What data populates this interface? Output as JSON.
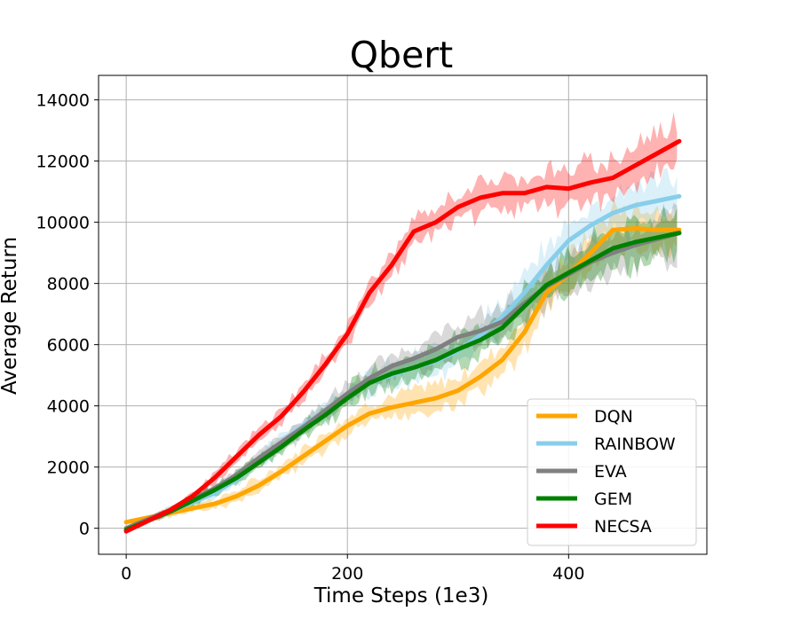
{
  "chart_data": {
    "type": "line",
    "title": "Qbert",
    "xlabel": "Time Steps (1e3)",
    "ylabel": "Average Return",
    "xlim": [
      -25,
      525
    ],
    "ylim": [
      -850,
      14800
    ],
    "xticks": [
      0,
      200,
      400
    ],
    "yticks": [
      0,
      2000,
      4000,
      6000,
      8000,
      10000,
      12000,
      14000
    ],
    "grid": true,
    "legend_position": "lower-right",
    "series": [
      {
        "name": "DQN",
        "color": "#FFA500",
        "x": [
          0,
          20,
          40,
          60,
          80,
          100,
          120,
          140,
          160,
          180,
          200,
          220,
          240,
          260,
          280,
          300,
          320,
          340,
          360,
          380,
          400,
          420,
          440,
          460,
          480,
          500
        ],
        "values": [
          200,
          350,
          500,
          650,
          800,
          1050,
          1400,
          1850,
          2350,
          2850,
          3350,
          3750,
          3950,
          4100,
          4250,
          4500,
          4950,
          5500,
          6400,
          7700,
          8300,
          9000,
          9750,
          9800,
          9750,
          9750
        ]
      },
      {
        "name": "RAINBOW",
        "color": "#87CEEB",
        "x": [
          0,
          20,
          40,
          60,
          80,
          100,
          120,
          140,
          160,
          180,
          200,
          220,
          240,
          260,
          280,
          300,
          320,
          340,
          360,
          380,
          400,
          420,
          440,
          460,
          480,
          500
        ],
        "values": [
          -100,
          250,
          550,
          850,
          1150,
          1600,
          2200,
          2800,
          3350,
          3850,
          4350,
          4750,
          5000,
          5250,
          5450,
          5800,
          6300,
          6900,
          7700,
          8600,
          9400,
          9900,
          10300,
          10550,
          10700,
          10850
        ]
      },
      {
        "name": "EVA",
        "color": "#808080",
        "x": [
          0,
          20,
          40,
          60,
          80,
          100,
          120,
          140,
          160,
          180,
          200,
          220,
          240,
          260,
          280,
          300,
          320,
          340,
          360,
          380,
          400,
          420,
          440,
          460,
          480,
          500
        ],
        "values": [
          0,
          300,
          600,
          950,
          1300,
          1750,
          2300,
          2800,
          3300,
          3850,
          4400,
          4900,
          5300,
          5550,
          5850,
          6250,
          6450,
          6750,
          7350,
          7900,
          8300,
          8700,
          9000,
          9250,
          9450,
          9650
        ]
      },
      {
        "name": "GEM",
        "color": "#008000",
        "x": [
          0,
          20,
          40,
          60,
          80,
          100,
          120,
          140,
          160,
          180,
          200,
          220,
          240,
          260,
          280,
          300,
          320,
          340,
          360,
          380,
          400,
          420,
          440,
          460,
          480,
          500
        ],
        "values": [
          -50,
          250,
          550,
          900,
          1250,
          1650,
          2150,
          2650,
          3200,
          3700,
          4250,
          4750,
          5050,
          5250,
          5500,
          5850,
          6150,
          6550,
          7250,
          7950,
          8350,
          8750,
          9150,
          9350,
          9500,
          9650
        ]
      },
      {
        "name": "NECSA",
        "color": "#FF0000",
        "x": [
          0,
          20,
          40,
          60,
          80,
          100,
          120,
          140,
          160,
          180,
          200,
          220,
          240,
          260,
          280,
          300,
          320,
          340,
          360,
          380,
          400,
          420,
          440,
          460,
          480,
          500
        ],
        "values": [
          -100,
          250,
          600,
          1050,
          1650,
          2350,
          3050,
          3650,
          4450,
          5350,
          6350,
          7700,
          8600,
          9700,
          10000,
          10500,
          10800,
          10950,
          10950,
          11150,
          11100,
          11300,
          11450,
          11850,
          12250,
          12650
        ]
      }
    ]
  }
}
